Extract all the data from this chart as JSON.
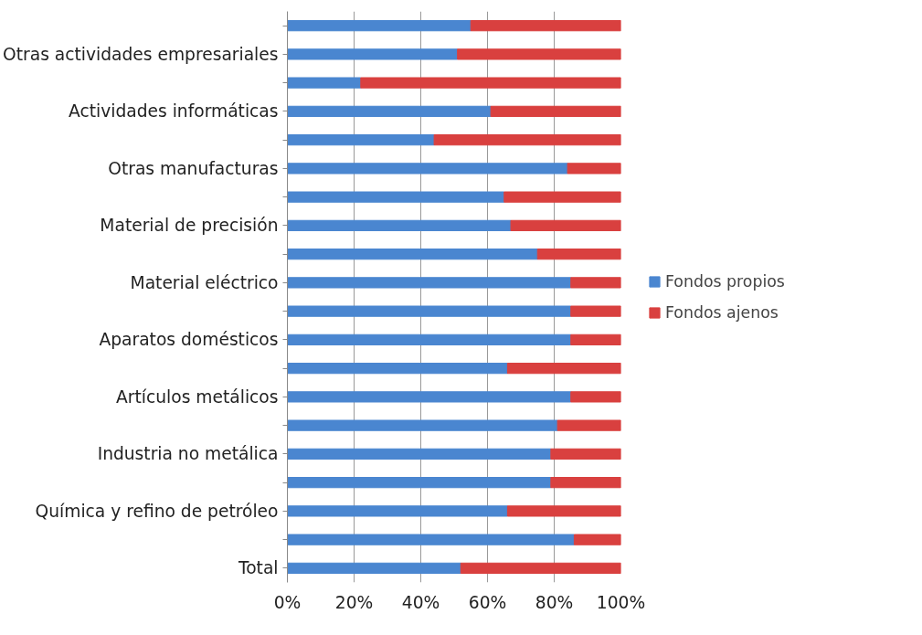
{
  "chart_data": {
    "type": "bar",
    "orientation": "horizontal",
    "stacked": true,
    "categories": [
      null,
      "Otras actividades empresariales",
      null,
      "Actividades informáticas",
      null,
      "Otras manufacturas",
      null,
      "Material de precisión",
      null,
      "Material eléctrico",
      null,
      "Aparatos domésticos",
      null,
      "Artículos metálicos",
      null,
      "Industria no metálica",
      null,
      "Química y refino de petróleo",
      null,
      "Total"
    ],
    "series": [
      {
        "name": "Fondos propios",
        "color": "#4a86d0",
        "values": [
          55,
          51,
          22,
          61,
          44,
          84,
          65,
          67,
          75,
          85,
          85,
          85,
          66,
          85,
          81,
          79,
          79,
          66,
          86,
          52
        ]
      },
      {
        "name": "Fondos ajenos",
        "color": "#d9403f",
        "values": [
          45,
          49,
          78,
          39,
          56,
          16,
          35,
          33,
          25,
          15,
          15,
          15,
          34,
          15,
          19,
          21,
          21,
          34,
          14,
          48
        ]
      }
    ],
    "xlim": [
      0,
      100
    ],
    "xticks": [
      {
        "value": 0,
        "label": "0%"
      },
      {
        "value": 20,
        "label": "20%"
      },
      {
        "value": 40,
        "label": "40%"
      },
      {
        "value": 60,
        "label": "60%"
      },
      {
        "value": 80,
        "label": "80%"
      },
      {
        "value": 100,
        "label": "100%"
      }
    ],
    "grid": "x",
    "legend": "right"
  }
}
